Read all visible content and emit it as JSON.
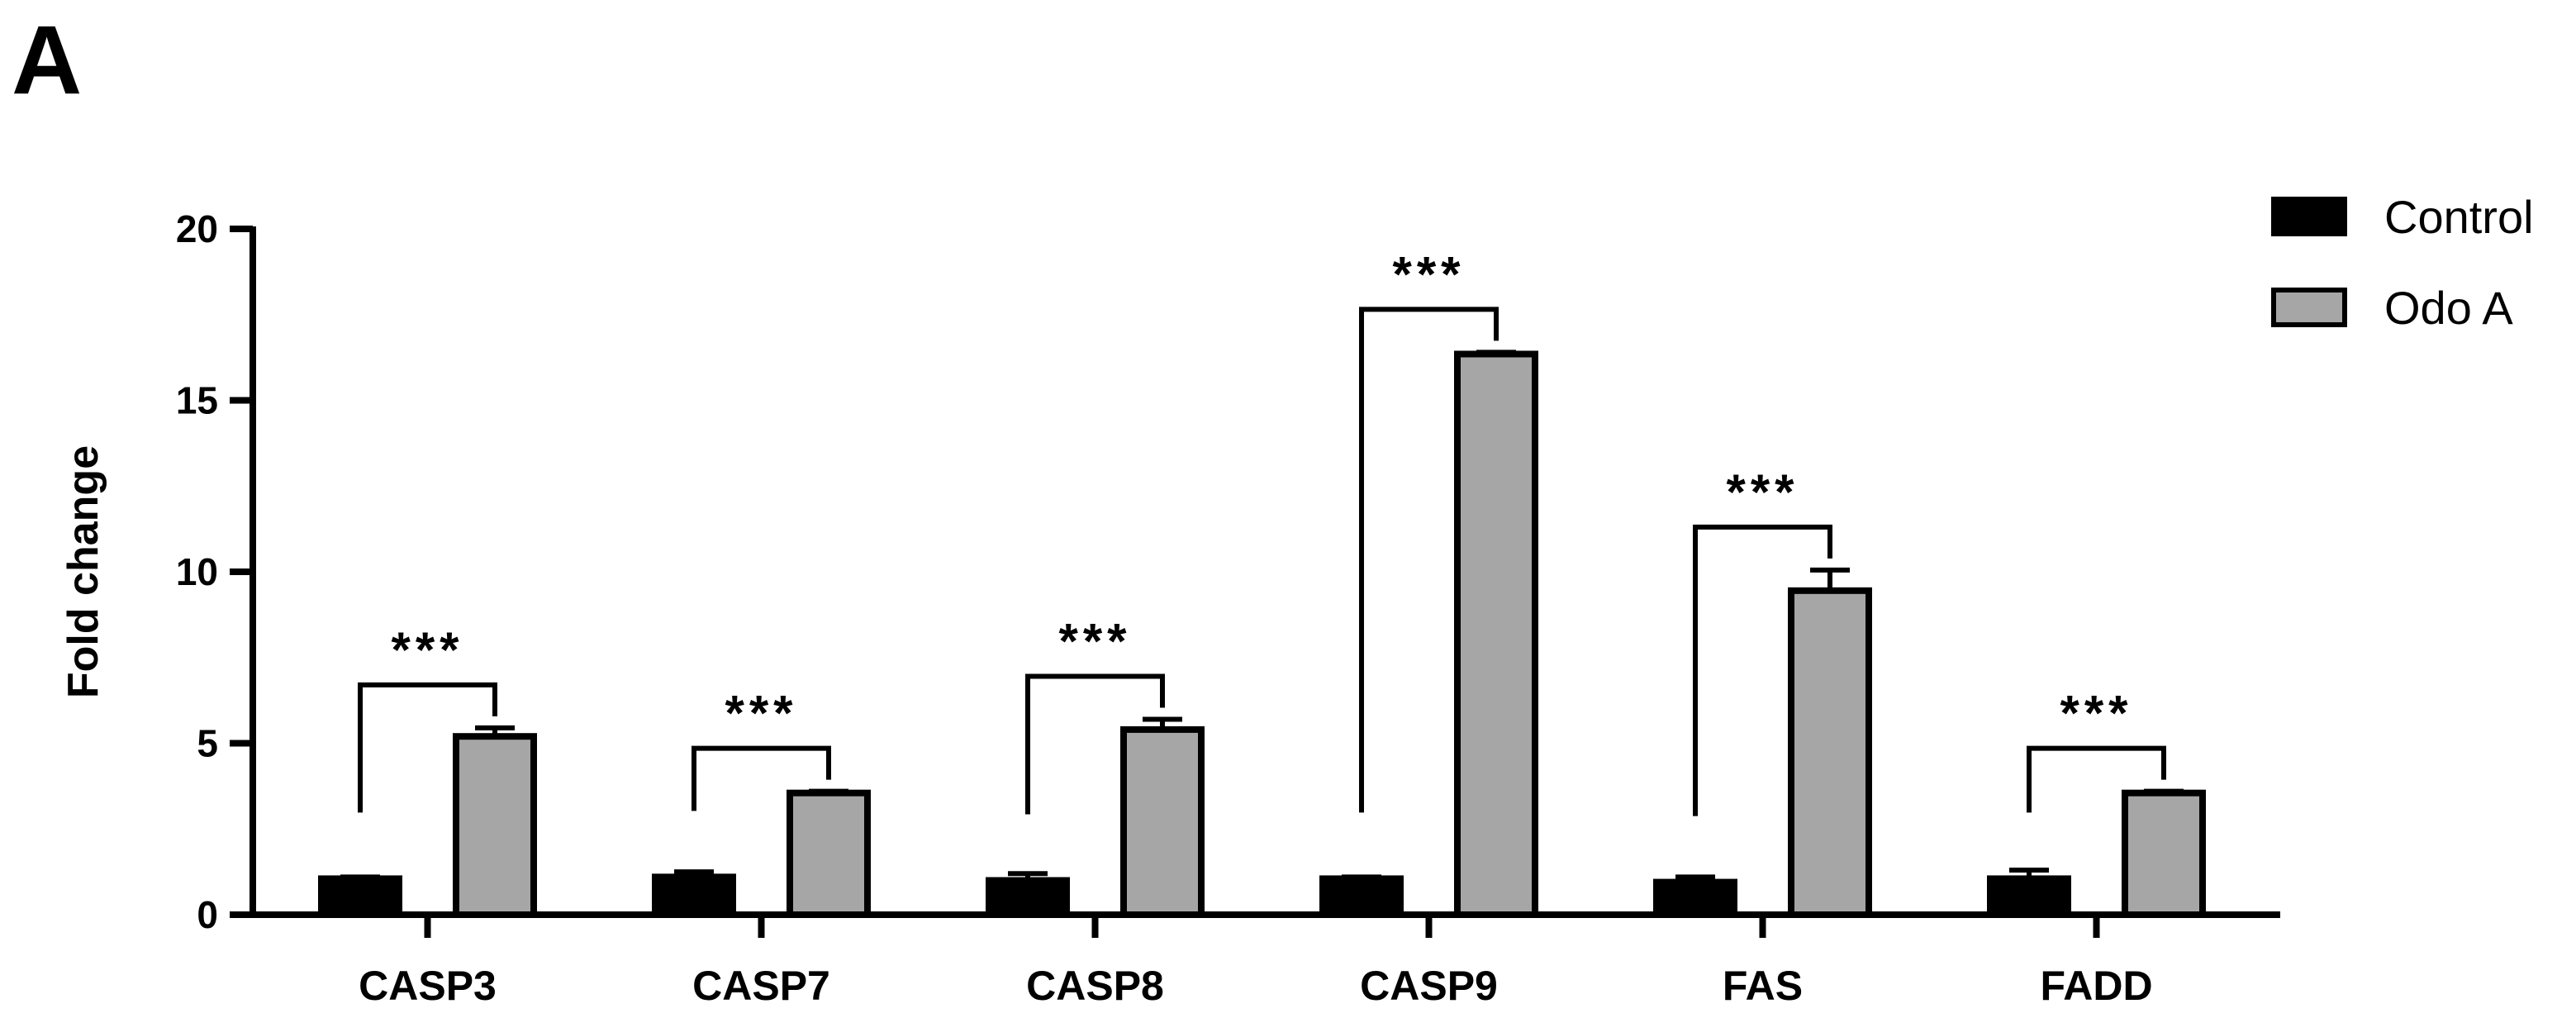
{
  "panel_label": "A",
  "colors": {
    "control": "#000000",
    "odo_a": "#a6a6a6",
    "axis": "#000000"
  },
  "chart_data": {
    "type": "bar",
    "title": "",
    "xlabel": "",
    "ylabel": "Fold change",
    "ylim": [
      0,
      20
    ],
    "yticks": [
      "0",
      "5",
      "10",
      "15",
      "20"
    ],
    "grid": false,
    "legend_position": "top-right",
    "categories": [
      "CASP3",
      "CASP7",
      "CASP8",
      "CASP9",
      "FAS",
      "FADD"
    ],
    "series": [
      {
        "name": "Control",
        "values": [
          1.05,
          1.1,
          1.0,
          1.05,
          0.95,
          1.05
        ],
        "errors": [
          0.05,
          0.15,
          0.2,
          0.05,
          0.15,
          0.25
        ]
      },
      {
        "name": "Odo A",
        "values": [
          5.2,
          3.55,
          5.4,
          16.35,
          9.45,
          3.55
        ],
        "errors": [
          0.25,
          0.05,
          0.3,
          0.05,
          0.6,
          0.05
        ]
      }
    ],
    "significance": [
      "***",
      "***",
      "***",
      "***",
      "***",
      "***"
    ]
  }
}
